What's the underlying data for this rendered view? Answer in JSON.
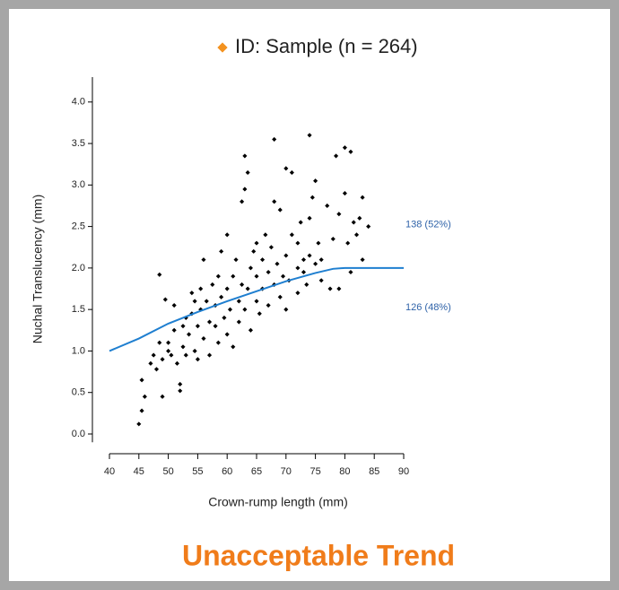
{
  "chart_data": {
    "type": "scatter",
    "title": "ID: Sample (n = 264)",
    "x_label": "Crown-rump length (mm)",
    "y_label": "Nuchal Translucency (mm)",
    "xlim": [
      40,
      90
    ],
    "xticks": [
      40,
      45,
      50,
      55,
      60,
      65,
      70,
      75,
      80,
      85,
      90
    ],
    "ylim": [
      -0.1,
      4.3
    ],
    "yticks": [
      {
        "value": 0,
        "label": "0.0"
      },
      0.5,
      {
        "value": 1,
        "label": "1.0"
      },
      1.5,
      {
        "value": 2,
        "label": "2.0"
      },
      2.5,
      {
        "value": 3,
        "label": "3.0"
      },
      3.5,
      {
        "value": 4,
        "label": "4.0"
      }
    ],
    "annotations": [
      "138 (52%)",
      "126 (48%)"
    ],
    "annotation_values": [
      2.5,
      1.5
    ],
    "annotation_color": "#2e62a8",
    "legend_color": "#f39220",
    "series": [
      {
        "name": "ID: Sample (n = 264)",
        "type": "scatter",
        "color": "#000000",
        "x": [
          45,
          45.5,
          46,
          45.5,
          47,
          47.5,
          48,
          48.5,
          48.5,
          49,
          49,
          49.5,
          50,
          50,
          50.5,
          51,
          51,
          51.5,
          52,
          52,
          52.5,
          52.5,
          53,
          53,
          53.5,
          54,
          54,
          54.5,
          54.5,
          55,
          55,
          55.5,
          55.5,
          56,
          56,
          56.5,
          57,
          57,
          57.5,
          58,
          58,
          58.5,
          58.5,
          59,
          59,
          59.5,
          60,
          60,
          60,
          60.5,
          61,
          61,
          61.5,
          62,
          62,
          62.5,
          62.5,
          63,
          63,
          63,
          63.5,
          63.5,
          64,
          64,
          64.5,
          65,
          65,
          65,
          65.5,
          66,
          66,
          66.5,
          67,
          67,
          67.5,
          68,
          68,
          68,
          68.5,
          69,
          69,
          69.5,
          70,
          70,
          70,
          70.5,
          71,
          71,
          72,
          72,
          72,
          72.5,
          73,
          73,
          73.5,
          74,
          74,
          74,
          74.5,
          75,
          75,
          75.5,
          76,
          76,
          77,
          77.5,
          78,
          78.5,
          79,
          79,
          80,
          80,
          80.5,
          81,
          81,
          81.5,
          82,
          82.5,
          83,
          83,
          84
        ],
        "values": [
          0.12,
          0.28,
          0.45,
          0.65,
          0.85,
          0.95,
          0.78,
          1.1,
          1.92,
          0.45,
          0.9,
          1.62,
          1.0,
          1.1,
          0.95,
          1.55,
          1.25,
          0.85,
          0.6,
          0.52,
          1.05,
          1.3,
          1.4,
          0.95,
          1.2,
          1.7,
          1.45,
          1.0,
          1.6,
          1.3,
          0.9,
          1.5,
          1.75,
          2.1,
          1.15,
          1.6,
          1.35,
          0.95,
          1.8,
          1.3,
          1.55,
          1.9,
          1.1,
          1.65,
          2.2,
          1.4,
          1.75,
          1.2,
          2.4,
          1.5,
          1.9,
          1.05,
          2.1,
          1.6,
          1.35,
          1.8,
          2.8,
          2.95,
          3.35,
          1.5,
          3.15,
          1.75,
          2.0,
          1.25,
          2.2,
          1.6,
          1.9,
          2.3,
          1.45,
          2.1,
          1.75,
          2.4,
          1.95,
          1.55,
          2.25,
          1.8,
          2.8,
          3.55,
          2.05,
          1.65,
          2.7,
          1.9,
          3.2,
          2.15,
          1.5,
          1.85,
          3.15,
          2.4,
          2.0,
          2.3,
          1.7,
          2.55,
          1.95,
          2.1,
          1.8,
          3.6,
          2.6,
          2.15,
          2.85,
          2.05,
          3.05,
          2.3,
          1.85,
          2.1,
          2.75,
          1.75,
          2.35,
          3.35,
          1.75,
          2.65,
          3.45,
          2.9,
          2.3,
          3.4,
          1.95,
          2.55,
          2.4,
          2.6,
          2.85,
          2.1,
          2.5
        ]
      },
      {
        "type": "line",
        "color": "#1f7fd0",
        "x": [
          40,
          45,
          50,
          55,
          60,
          65,
          70,
          75,
          78,
          80,
          90
        ],
        "values": [
          1.0,
          1.15,
          1.33,
          1.47,
          1.6,
          1.72,
          1.84,
          1.94,
          1.99,
          2.0,
          2.0
        ]
      }
    ]
  },
  "caption": "Unacceptable Trend",
  "caption_color": "#f07c1a"
}
